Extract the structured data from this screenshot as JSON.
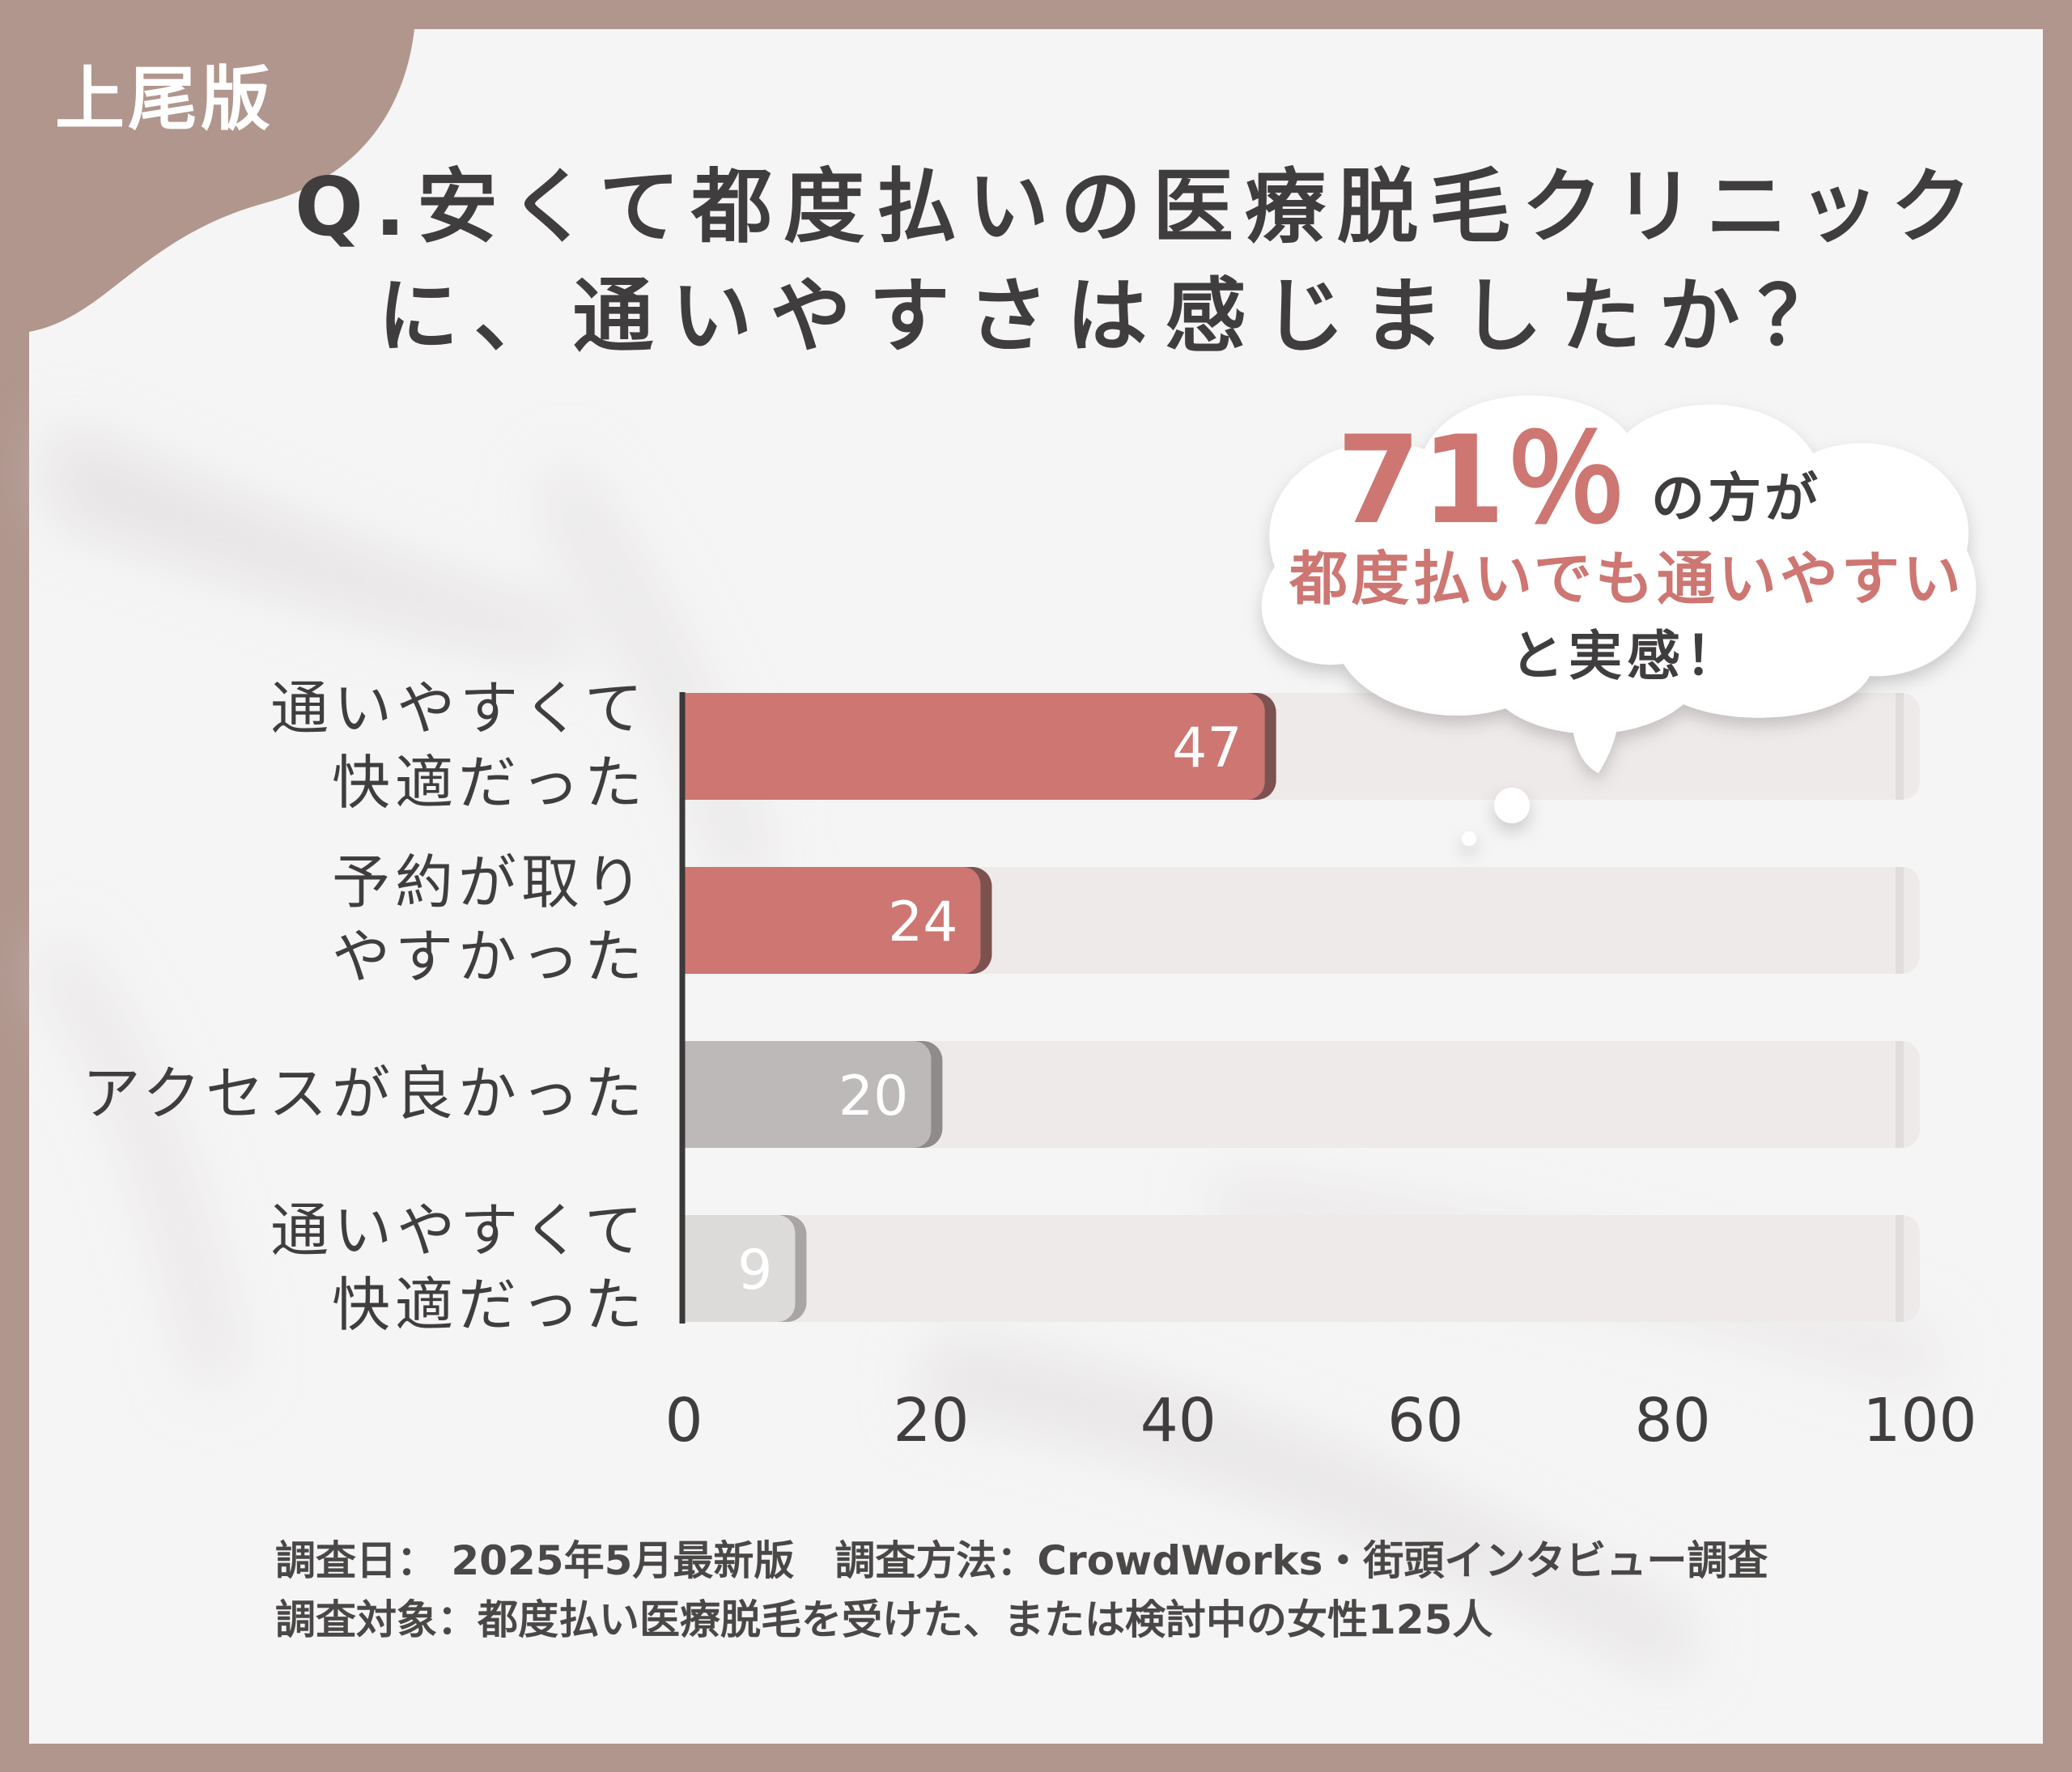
{
  "badge": "上尾版",
  "question": {
    "line1": "Q.安くて都度払いの医療脱毛クリニック",
    "line2": "に、通いやすさは感じましたか？"
  },
  "callout": {
    "percent": "71％",
    "suffix": "の方が",
    "highlight": "都度払いでも通いやすい",
    "tail": "と実感！"
  },
  "survey": {
    "line1": "調査日： 2025年5月最新版　調査方法：CrowdWorks・街頭インタビュー調査",
    "line2": "調査対象：都度払い医療脱毛を受けた、または検討中の女性125人"
  },
  "colors": {
    "background": "#b0968d",
    "card": "#f6f5f5",
    "title": "#3f3d3d",
    "accent": "#cd7672",
    "accent_shadow": "#7b5250",
    "gray_bar": "#bdb9b9",
    "light_gray_bar": "#dddada",
    "track": "#efeaea",
    "axis": "#3b3838"
  },
  "chart_data": {
    "type": "bar",
    "orientation": "horizontal",
    "categories": [
      [
        "通いやすくて",
        "快適だった"
      ],
      [
        "予約が取り",
        "やすかった"
      ],
      [
        "アクセスが良かった"
      ],
      [
        "通いやすくて",
        "快適だった"
      ]
    ],
    "values": [
      47,
      24,
      20,
      9
    ],
    "bar_colors": [
      "#cd7672",
      "#cd7672",
      "#bdb9b9",
      "#dddada"
    ],
    "xlim": [
      0,
      100
    ],
    "xticks": [
      0,
      20,
      40,
      60,
      80,
      100
    ],
    "title": "Q.安くて都度払いの医療脱毛クリニックに、通いやすさは感じましたか？",
    "xlabel": "",
    "ylabel": ""
  }
}
